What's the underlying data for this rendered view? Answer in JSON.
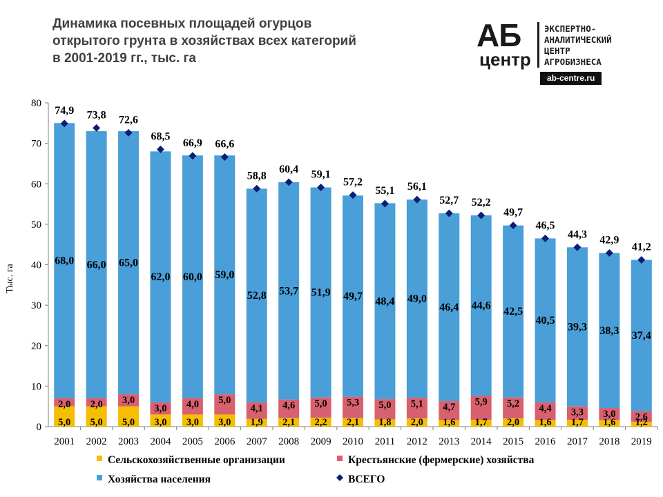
{
  "title_lines": [
    "Динамика посевных площадей огурцов",
    "открытого грунта в хозяйствах всех категорий",
    "в 2001-2019 гг., тыс. га"
  ],
  "logo": {
    "big": "АБ",
    "small": "центр",
    "text_lines": [
      "ЭКСПЕРТНО-",
      "АНАЛИТИЧЕСКИЙ",
      "ЦЕНТР",
      "АГРОБИЗНЕСА"
    ],
    "url": "ab-centre.ru"
  },
  "colors": {
    "agro": "#F5BE00",
    "farm": "#D9606E",
    "households": "#4A9FD9",
    "total": "#0A1E78"
  },
  "chart_data": {
    "type": "bar",
    "stacked": true,
    "categories": [
      "2001",
      "2002",
      "2003",
      "2004",
      "2005",
      "2006",
      "2007",
      "2008",
      "2009",
      "2010",
      "2011",
      "2012",
      "2013",
      "2014",
      "2015",
      "2016",
      "2017",
      "2018",
      "2019"
    ],
    "series": [
      {
        "name": "Сельскохозяйственные организации",
        "values": [
          5.0,
          5.0,
          5.0,
          3.0,
          3.0,
          3.0,
          1.9,
          2.1,
          2.2,
          2.1,
          1.8,
          2.0,
          1.6,
          1.7,
          2.0,
          1.6,
          1.7,
          1.6,
          1.2
        ]
      },
      {
        "name": "Крестьянские (фермерские) хозяйства",
        "values": [
          2.0,
          2.0,
          3.0,
          3.0,
          4.0,
          5.0,
          4.1,
          4.6,
          5.0,
          5.3,
          5.0,
          5.1,
          4.7,
          5.9,
          5.2,
          4.4,
          3.3,
          3.0,
          2.6
        ]
      },
      {
        "name": "Хозяйства населения",
        "values": [
          68.0,
          66.0,
          65.0,
          62.0,
          60.0,
          59.0,
          52.8,
          53.7,
          51.9,
          49.7,
          48.4,
          49.0,
          46.4,
          44.6,
          42.5,
          40.5,
          39.3,
          38.3,
          37.4
        ]
      }
    ],
    "total": {
      "name": "ВСЕГО",
      "type": "scatter",
      "marker": "diamond",
      "values": [
        74.9,
        73.8,
        72.6,
        68.5,
        66.9,
        66.6,
        58.8,
        60.4,
        59.1,
        57.2,
        55.1,
        56.1,
        52.7,
        52.2,
        49.7,
        46.5,
        44.3,
        42.9,
        41.2
      ]
    },
    "ylabel": "Тыс. га",
    "ylim": [
      0,
      80
    ],
    "yticks": [
      0,
      10,
      20,
      30,
      40,
      50,
      60,
      70,
      80
    ],
    "grid": false,
    "legend_position": "bottom"
  }
}
